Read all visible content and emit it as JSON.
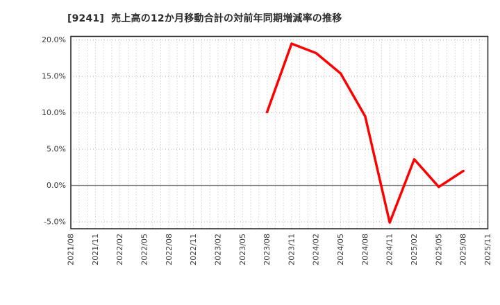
{
  "page": {
    "background": "#ffffff"
  },
  "chart_data": {
    "type": "line",
    "title": "[9241]  売上高の12か月移動合計の対前年同期増減率の推移",
    "x_axis_months_total": 51,
    "x_ticks": [
      {
        "label": "2021/08",
        "month": 0
      },
      {
        "label": "2021/11",
        "month": 3
      },
      {
        "label": "2022/02",
        "month": 6
      },
      {
        "label": "2022/05",
        "month": 9
      },
      {
        "label": "2022/08",
        "month": 12
      },
      {
        "label": "2022/11",
        "month": 15
      },
      {
        "label": "2023/02",
        "month": 18
      },
      {
        "label": "2023/05",
        "month": 21
      },
      {
        "label": "2023/08",
        "month": 24
      },
      {
        "label": "2023/11",
        "month": 27
      },
      {
        "label": "2024/02",
        "month": 30
      },
      {
        "label": "2024/05",
        "month": 33
      },
      {
        "label": "2024/08",
        "month": 36
      },
      {
        "label": "2024/11",
        "month": 39
      },
      {
        "label": "2025/02",
        "month": 42
      },
      {
        "label": "2025/05",
        "month": 45
      },
      {
        "label": "2025/08",
        "month": 48
      },
      {
        "label": "2025/11",
        "month": 51
      }
    ],
    "y_ticks": [
      {
        "label": "20.0%",
        "value": 20
      },
      {
        "label": "15.0%",
        "value": 15
      },
      {
        "label": "10.0%",
        "value": 10
      },
      {
        "label": "5.0%",
        "value": 5
      },
      {
        "label": "0.0%",
        "value": 0
      },
      {
        "label": "-5.0%",
        "value": -5
      }
    ],
    "ylim": [
      -5.95,
      20.5
    ],
    "grid": true,
    "zero_line": true,
    "legend": "none",
    "series": [
      {
        "color": "#ff0000",
        "points": [
          {
            "date": "2023/08",
            "month": 24,
            "value": 10.1
          },
          {
            "date": "2023/11",
            "month": 27,
            "value": 19.5
          },
          {
            "date": "2024/02",
            "month": 30,
            "value": 18.2
          },
          {
            "date": "2024/05",
            "month": 33,
            "value": 15.4
          },
          {
            "date": "2024/08",
            "month": 36,
            "value": 9.5
          },
          {
            "date": "2024/11",
            "month": 39,
            "value": -5.1
          },
          {
            "date": "2025/02",
            "month": 42,
            "value": 3.6
          },
          {
            "date": "2025/05",
            "month": 45,
            "value": -0.2
          },
          {
            "date": "2025/08",
            "month": 48,
            "value": 2.0
          }
        ]
      }
    ],
    "colors": {
      "line": "#ff0000",
      "grid": "#b3b3b3",
      "zero_line": "#7f7f7f",
      "frame": "#2e2e2e",
      "tick_text": "#3a3a3a",
      "title_text": "#2b2b2b",
      "background": "#ffffff"
    }
  }
}
